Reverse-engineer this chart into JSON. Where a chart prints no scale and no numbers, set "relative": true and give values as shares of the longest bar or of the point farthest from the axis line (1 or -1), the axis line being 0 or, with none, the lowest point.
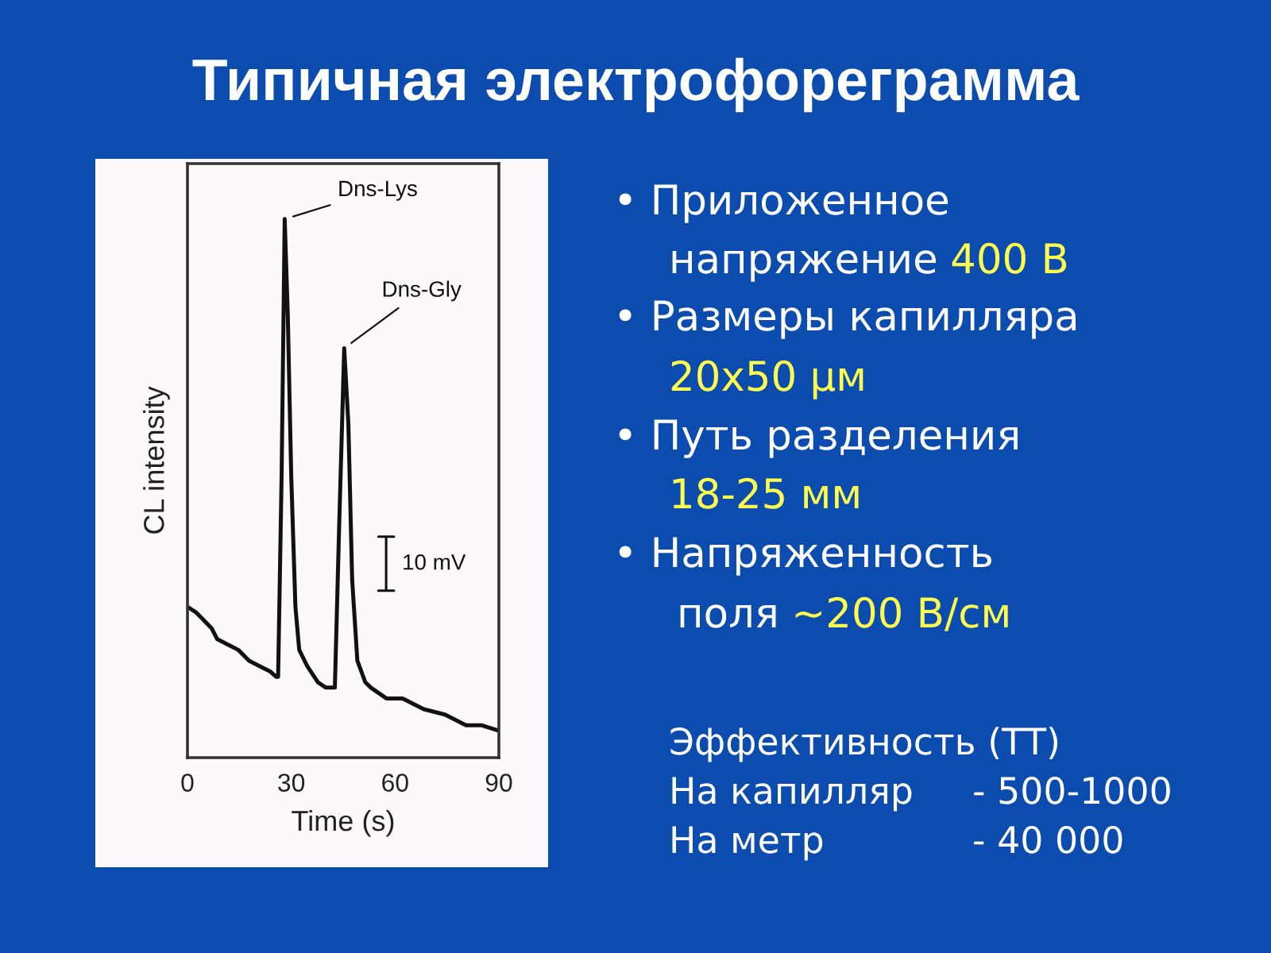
{
  "chart_data": {
    "type": "line",
    "title": "Типичная электрофореграмма",
    "xlabel": "Time (s)",
    "ylabel": "CL intensity",
    "relative": true,
    "color": "#111111",
    "x": [
      0,
      2.4,
      4,
      7,
      8.6,
      11.6,
      14.7,
      17.8,
      20.8,
      23.9,
      25.7,
      26.2,
      27.2,
      28.1,
      29,
      30,
      31.2,
      32.3,
      34.6,
      37.7,
      40,
      42.6,
      43.8,
      45.3,
      46.5,
      47.6,
      49.1,
      51.4,
      53,
      57.5,
      62.1,
      68.3,
      74.4,
      80.5,
      85.1,
      90
    ],
    "values": [
      0.28,
      0.27,
      0.26,
      0.24,
      0.22,
      0.21,
      0.2,
      0.18,
      0.17,
      0.16,
      0.15,
      0.15,
      0.52,
      1,
      0.82,
      0.52,
      0.28,
      0.2,
      0.17,
      0.14,
      0.13,
      0.13,
      0.42,
      0.76,
      0.62,
      0.33,
      0.18,
      0.14,
      0.13,
      0.11,
      0.11,
      0.09,
      0.08,
      0.06,
      0.06,
      0.05
    ],
    "xlim": [
      0,
      90
    ],
    "xticks": [
      0,
      30,
      60,
      90
    ],
    "tick_labels": "x",
    "annotations": [
      {
        "text": "Dns-Lys",
        "x": 28.1,
        "y": 1
      },
      {
        "text": "Dns-Gly",
        "x": 45.3,
        "y": 0.76
      },
      "10 mV",
      "• Приложенное",
      "напряжение",
      "400 В",
      "• Размеры капилляра",
      "20х50 μм",
      "• Путь разделения",
      "18-25 мм",
      "• Напряженность",
      "поля",
      "~200 В/см",
      "Эффективность (ТТ)",
      "На капилляр",
      "- 500-1000",
      "На метр",
      "- 40 000"
    ]
  }
}
